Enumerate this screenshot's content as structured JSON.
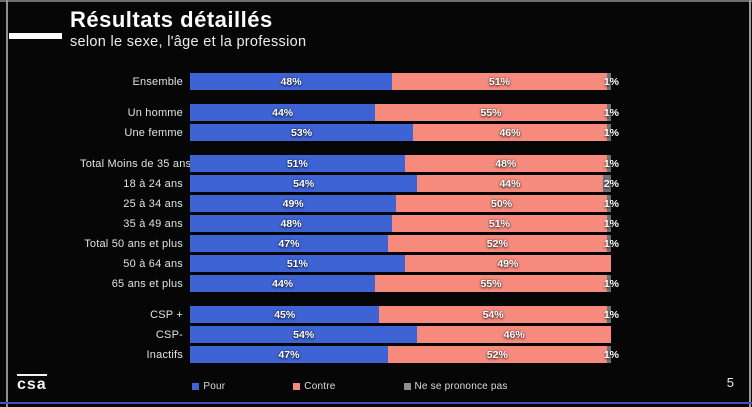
{
  "header": {
    "title": "Résultats détaillés",
    "subtitle": "selon le sexe, l'âge et la profession"
  },
  "footer": {
    "logo_text": "csa",
    "page_number": "5"
  },
  "chart_data": {
    "type": "bar",
    "stacked": true,
    "orientation": "horizontal",
    "unit": "%",
    "xlim": [
      0,
      100
    ],
    "grid": false,
    "legend_position": "bottom",
    "colors": {
      "pour": "#3e63d5",
      "contre": "#f58a7d",
      "nsp": "#6f6f79"
    },
    "series_names": [
      "Pour",
      "Contre",
      "Ne se prononce pas"
    ],
    "legend": [
      {
        "label": "Pour",
        "color": "#3e63d5"
      },
      {
        "label": "Contre",
        "color": "#f58a7d"
      },
      {
        "label": "Ne se prononce pas",
        "color": "#8c8c94"
      }
    ],
    "groups": [
      {
        "rows": [
          {
            "label": "Ensemble",
            "pour": 48,
            "contre": 51,
            "nsp": 1
          }
        ]
      },
      {
        "rows": [
          {
            "label": "Un homme",
            "pour": 44,
            "contre": 55,
            "nsp": 1
          },
          {
            "label": "Une femme",
            "pour": 53,
            "contre": 46,
            "nsp": 1
          }
        ]
      },
      {
        "rows": [
          {
            "label": "Total Moins de 35 ans",
            "pour": 51,
            "contre": 48,
            "nsp": 1
          },
          {
            "label": "18 à 24 ans",
            "pour": 54,
            "contre": 44,
            "nsp": 2
          },
          {
            "label": "25 à 34 ans",
            "pour": 49,
            "contre": 50,
            "nsp": 1
          },
          {
            "label": "35 à 49 ans",
            "pour": 48,
            "contre": 51,
            "nsp": 1
          },
          {
            "label": "Total 50 ans et plus",
            "pour": 47,
            "contre": 52,
            "nsp": 1
          },
          {
            "label": "50 à 64 ans",
            "pour": 51,
            "contre": 49,
            "nsp": 0
          },
          {
            "label": "65 ans et plus",
            "pour": 44,
            "contre": 55,
            "nsp": 1
          }
        ]
      },
      {
        "rows": [
          {
            "label": "CSP +",
            "pour": 45,
            "contre": 54,
            "nsp": 1
          },
          {
            "label": "CSP-",
            "pour": 54,
            "contre": 46,
            "nsp": 0
          },
          {
            "label": "Inactifs",
            "pour": 47,
            "contre": 52,
            "nsp": 1
          }
        ]
      }
    ]
  }
}
